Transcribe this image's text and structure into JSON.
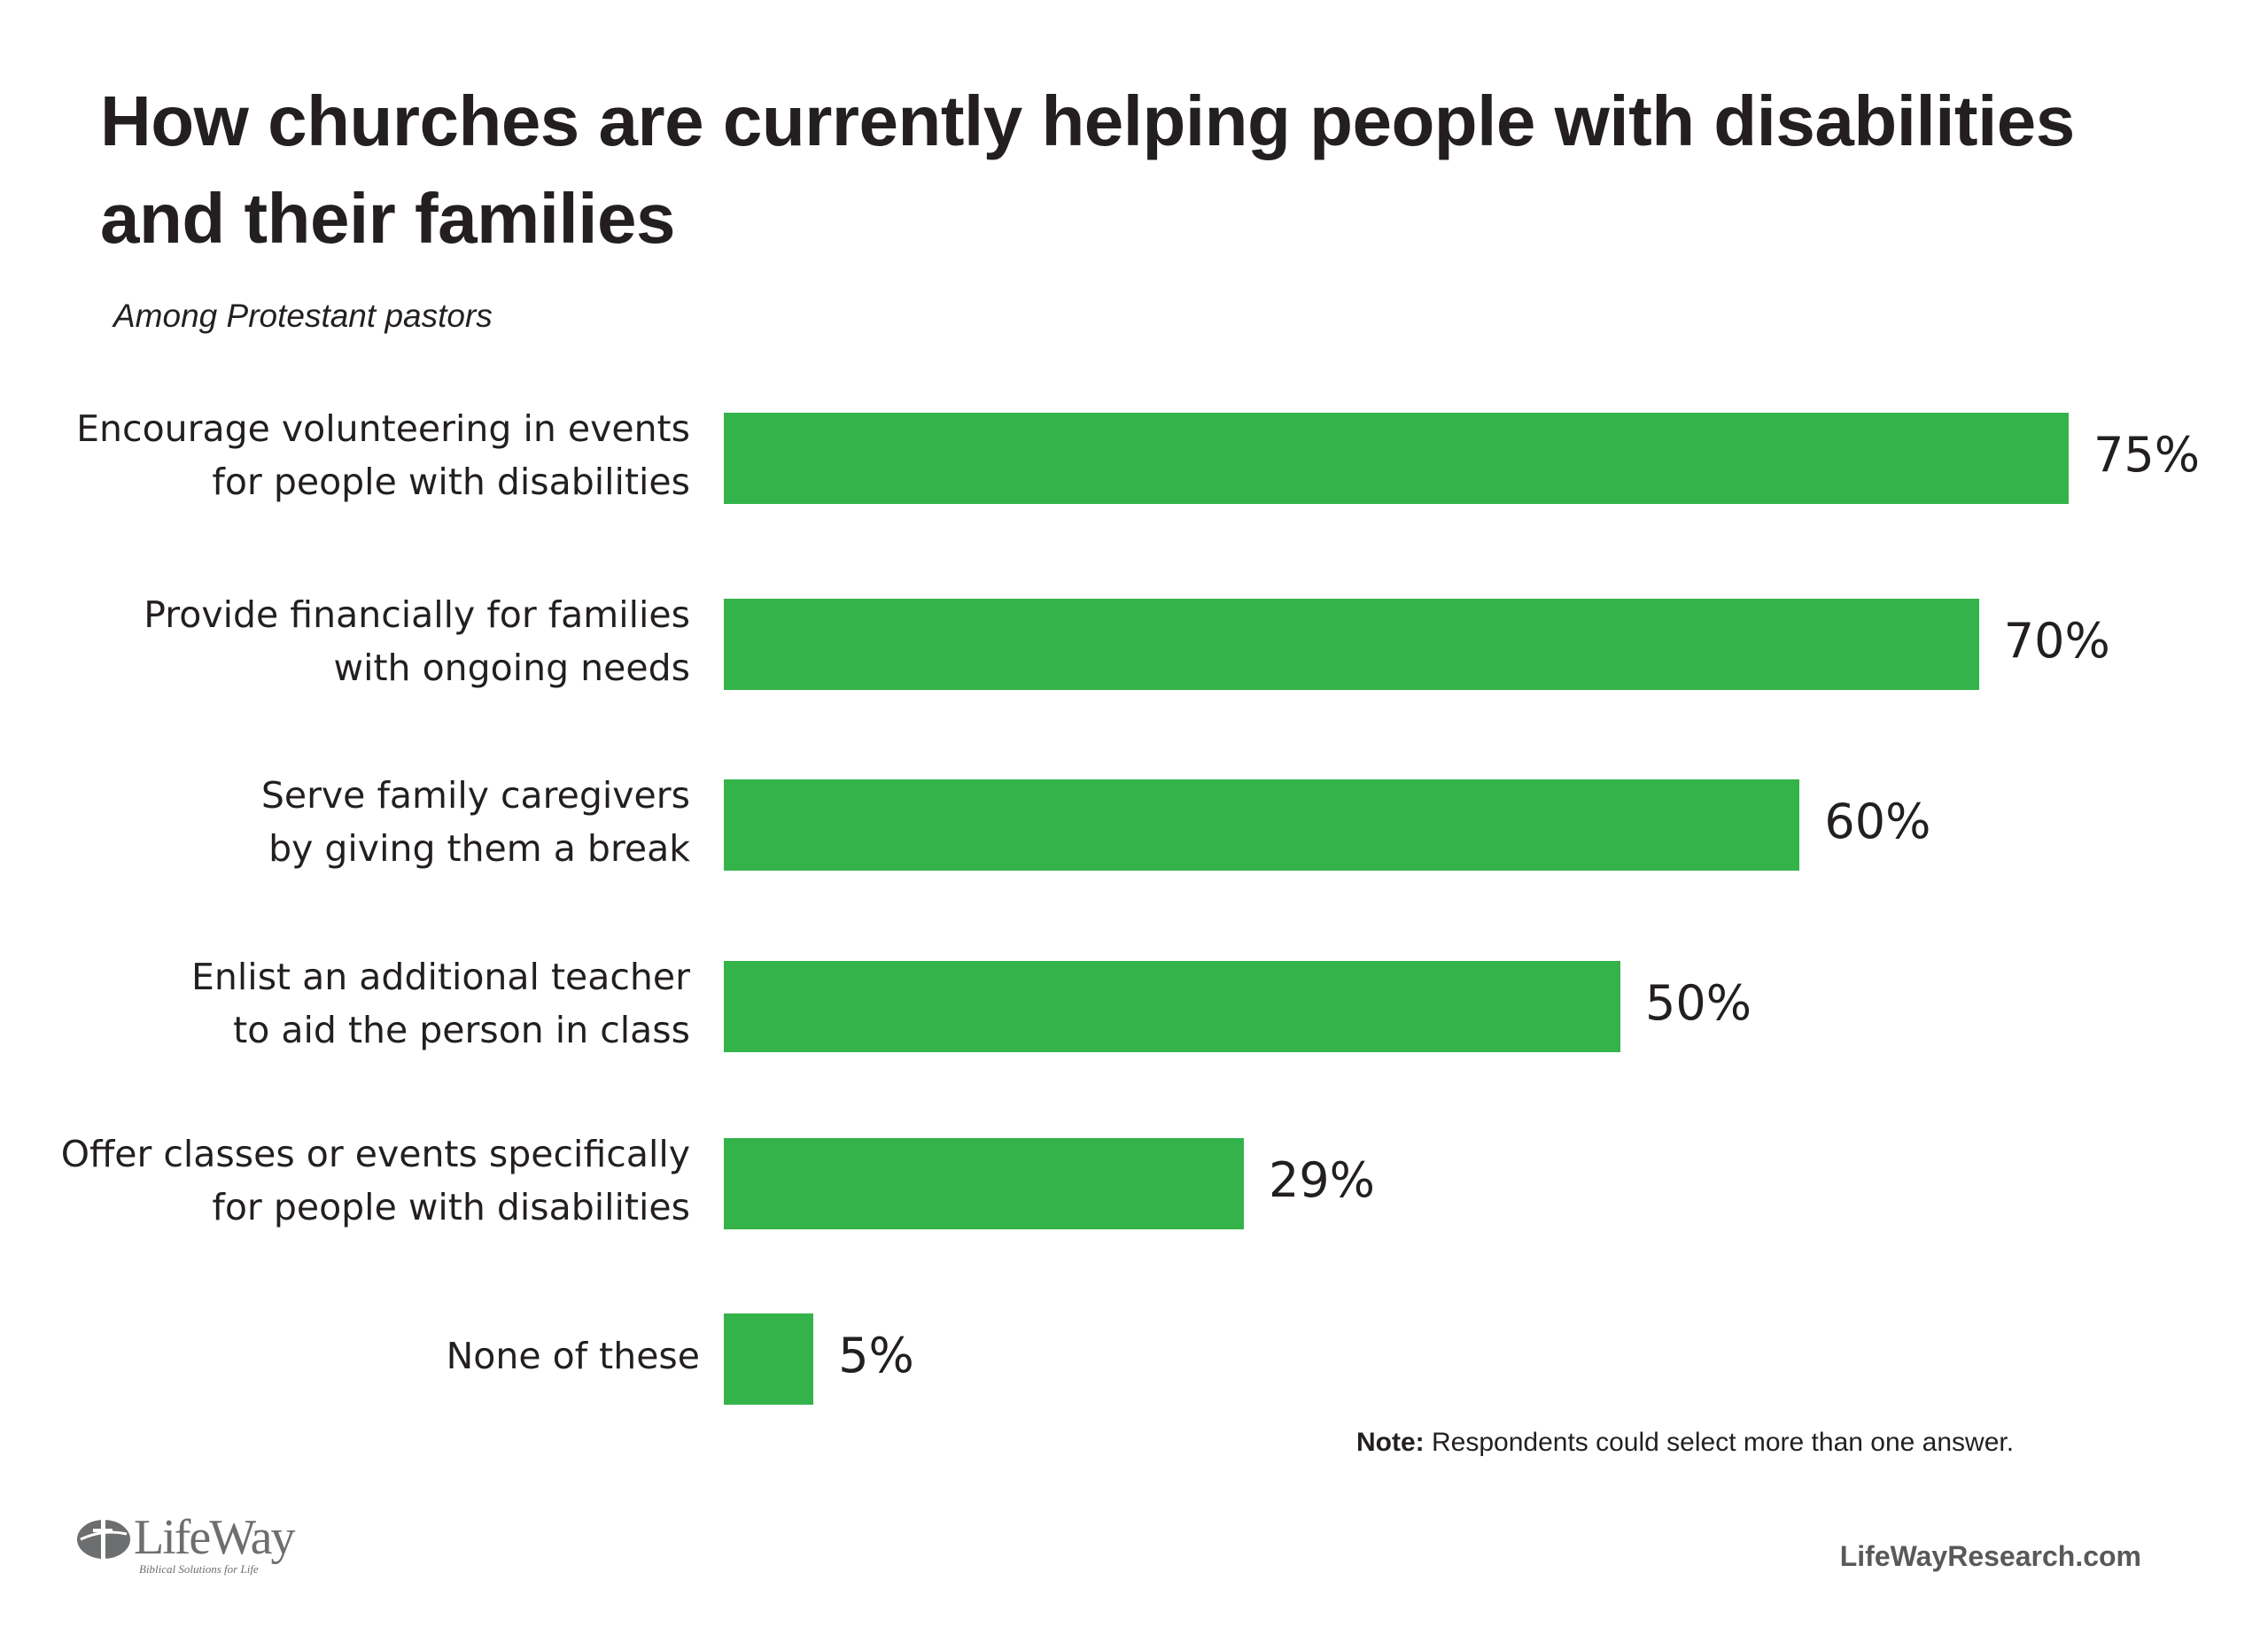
{
  "chart_data": {
    "type": "bar",
    "orientation": "horizontal",
    "title": "How churches are currently helping people with disabilities and their families",
    "subtitle": "Among Protestant pastors",
    "categories": [
      "Encourage volunteering in events\nfor people with disabilities",
      "Provide financially for families\nwith ongoing needs",
      "Serve family caregivers\nby giving them a break",
      "Enlist an additional teacher\nto aid the person in class",
      "Offer classes or events specifically\nfor people with disabilities",
      "None of these"
    ],
    "values": [
      75,
      70,
      60,
      50,
      29,
      5
    ],
    "value_labels": [
      "75%",
      "70%",
      "60%",
      "50%",
      "29%",
      "5%"
    ],
    "unit": "%",
    "xlim": [
      0,
      100
    ],
    "grid": false,
    "bar_color": "#34b34a"
  },
  "note": {
    "bold": "Note:",
    "text": " Respondents could select more than one answer."
  },
  "footer": {
    "site": "LifeWayResearch.com",
    "logo_text": "LifeWay",
    "logo_tagline": "Biblical Solutions for Life"
  }
}
